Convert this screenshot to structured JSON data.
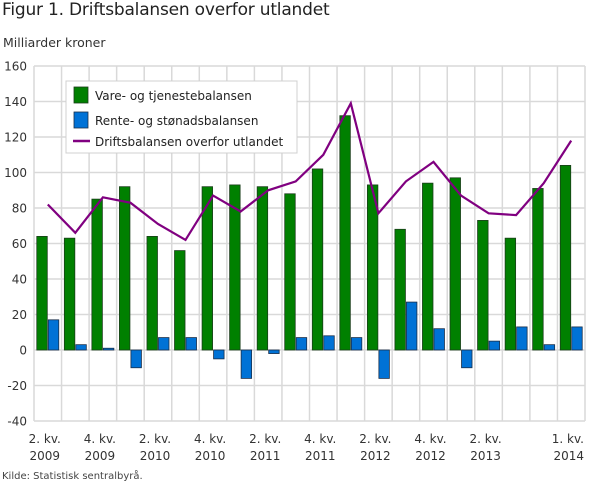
{
  "title": "Figur 1. Driftsbalansen overfor utlandet",
  "source": "Kilde: Statistisk sentralbyrå.",
  "chart_data": {
    "type": "bar",
    "title": "Figur 1. Driftsbalansen overfor utlandet",
    "ylabel": "Milliarder kroner",
    "xlabel": "",
    "ylim": [
      -40,
      160
    ],
    "yticks": [
      160,
      140,
      120,
      100,
      80,
      60,
      40,
      20,
      0,
      -20,
      -40
    ],
    "grid": true,
    "legend_position": "top-left",
    "categories": [
      "2. kv. 2009",
      "3. kv. 2009",
      "4. kv. 2009",
      "1. kv. 2010",
      "2. kv. 2010",
      "3. kv. 2010",
      "4. kv. 2010",
      "1. kv. 2011",
      "2. kv. 2011",
      "3. kv. 2011",
      "4. kv. 2011",
      "1. kv. 2012",
      "2. kv. 2012",
      "3. kv. 2012",
      "4. kv. 2012",
      "1. kv. 2013",
      "2. kv. 2013",
      "3. kv. 2013",
      "4. kv. 2013",
      "1. kv. 2014"
    ],
    "x_tick_labels": [
      {
        "index": 0,
        "line1": "2. kv.",
        "line2": "2009"
      },
      {
        "index": 2,
        "line1": "4. kv.",
        "line2": "2009"
      },
      {
        "index": 4,
        "line1": "2. kv.",
        "line2": "2010"
      },
      {
        "index": 6,
        "line1": "4. kv.",
        "line2": "2010"
      },
      {
        "index": 8,
        "line1": "2. kv.",
        "line2": "2011"
      },
      {
        "index": 10,
        "line1": "4. kv.",
        "line2": "2011"
      },
      {
        "index": 12,
        "line1": "2. kv.",
        "line2": "2012"
      },
      {
        "index": 14,
        "line1": "4. kv.",
        "line2": "2012"
      },
      {
        "index": 16,
        "line1": "2. kv.",
        "line2": "2013"
      },
      {
        "index": 19,
        "line1": "1. kv.",
        "line2": "2014"
      }
    ],
    "series": [
      {
        "name": "Vare- og tjenestebalansen",
        "type": "bar",
        "color": "#008000",
        "values": [
          64,
          63,
          85,
          92,
          64,
          56,
          92,
          93,
          92,
          88,
          102,
          132,
          93,
          68,
          94,
          97,
          73,
          63,
          91,
          104
        ]
      },
      {
        "name": "Rente- og stønadsbalansen",
        "type": "bar",
        "color": "#0072d6",
        "values": [
          17,
          3,
          1,
          -10,
          7,
          7,
          -5,
          -16,
          -2,
          7,
          8,
          7,
          -16,
          27,
          12,
          -10,
          5,
          13,
          3,
          13
        ]
      },
      {
        "name": "Driftsbalansen overfor utlandet",
        "type": "line",
        "color": "#800080",
        "values": [
          82,
          66,
          86,
          83,
          71,
          62,
          87,
          78,
          90,
          95,
          110,
          139,
          77,
          95,
          106,
          87,
          77,
          76,
          94,
          118
        ]
      }
    ]
  }
}
